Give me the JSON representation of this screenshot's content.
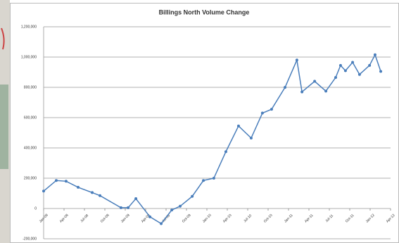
{
  "chart_data": {
    "type": "line",
    "title": "Billings North Volume Change",
    "x": [
      0,
      0.62,
      1.1,
      1.69,
      2.38,
      2.76,
      3.79,
      4.14,
      4.52,
      5.21,
      5.76,
      6.28,
      6.69,
      7.28,
      7.83,
      8.34,
      8.93,
      9.55,
      10.17,
      10.72,
      11.17,
      11.83,
      12.41,
      12.66,
      13.28,
      13.83,
      14.31,
      14.55,
      14.79,
      15.14,
      15.48,
      15.97,
      16.24,
      16.52
    ],
    "series": [
      {
        "name": "Billings North",
        "color": "#4a7ebb",
        "values": [
          115000,
          185000,
          180000,
          140000,
          105000,
          85000,
          5000,
          5000,
          65000,
          -55000,
          -100000,
          -10000,
          15000,
          80000,
          185000,
          200000,
          375000,
          545000,
          465000,
          630000,
          655000,
          800000,
          980000,
          770000,
          840000,
          775000,
          865000,
          945000,
          910000,
          965000,
          885000,
          945000,
          1015000,
          905000
        ]
      }
    ],
    "xlim": [
      0,
      17
    ],
    "xticks": [
      {
        "value": 0,
        "label": "Jan-08"
      },
      {
        "value": 1,
        "label": "Apr-08"
      },
      {
        "value": 2,
        "label": "Jul-08"
      },
      {
        "value": 3,
        "label": "Oct-08"
      },
      {
        "value": 4,
        "label": "Jan-09"
      },
      {
        "value": 5,
        "label": "Apr-09"
      },
      {
        "value": 6,
        "label": "Jul-09"
      },
      {
        "value": 7,
        "label": "Oct-09"
      },
      {
        "value": 8,
        "label": "Jan-10"
      },
      {
        "value": 9,
        "label": "Apr-10"
      },
      {
        "value": 10,
        "label": "Jul-10"
      },
      {
        "value": 11,
        "label": "Oct-10"
      },
      {
        "value": 12,
        "label": "Jan-11"
      },
      {
        "value": 13,
        "label": "Apr-11"
      },
      {
        "value": 14,
        "label": "Jul-11"
      },
      {
        "value": 15,
        "label": "Oct-11"
      },
      {
        "value": 16,
        "label": "Jan-12"
      },
      {
        "value": 17,
        "label": "Apr-12"
      }
    ],
    "ylim": [
      -200000,
      1200000
    ],
    "yticks": [
      {
        "value": -200000,
        "label": "-200,000"
      },
      0,
      {
        "value": 200000,
        "label": "200,000"
      },
      {
        "value": 400000,
        "label": "400,000"
      },
      {
        "value": 600000,
        "label": "600,000"
      },
      {
        "value": 800000,
        "label": "800,000"
      },
      {
        "value": 1000000,
        "label": "1,000,000"
      },
      {
        "value": 1200000,
        "label": "1,200,000"
      }
    ],
    "grid": true
  }
}
